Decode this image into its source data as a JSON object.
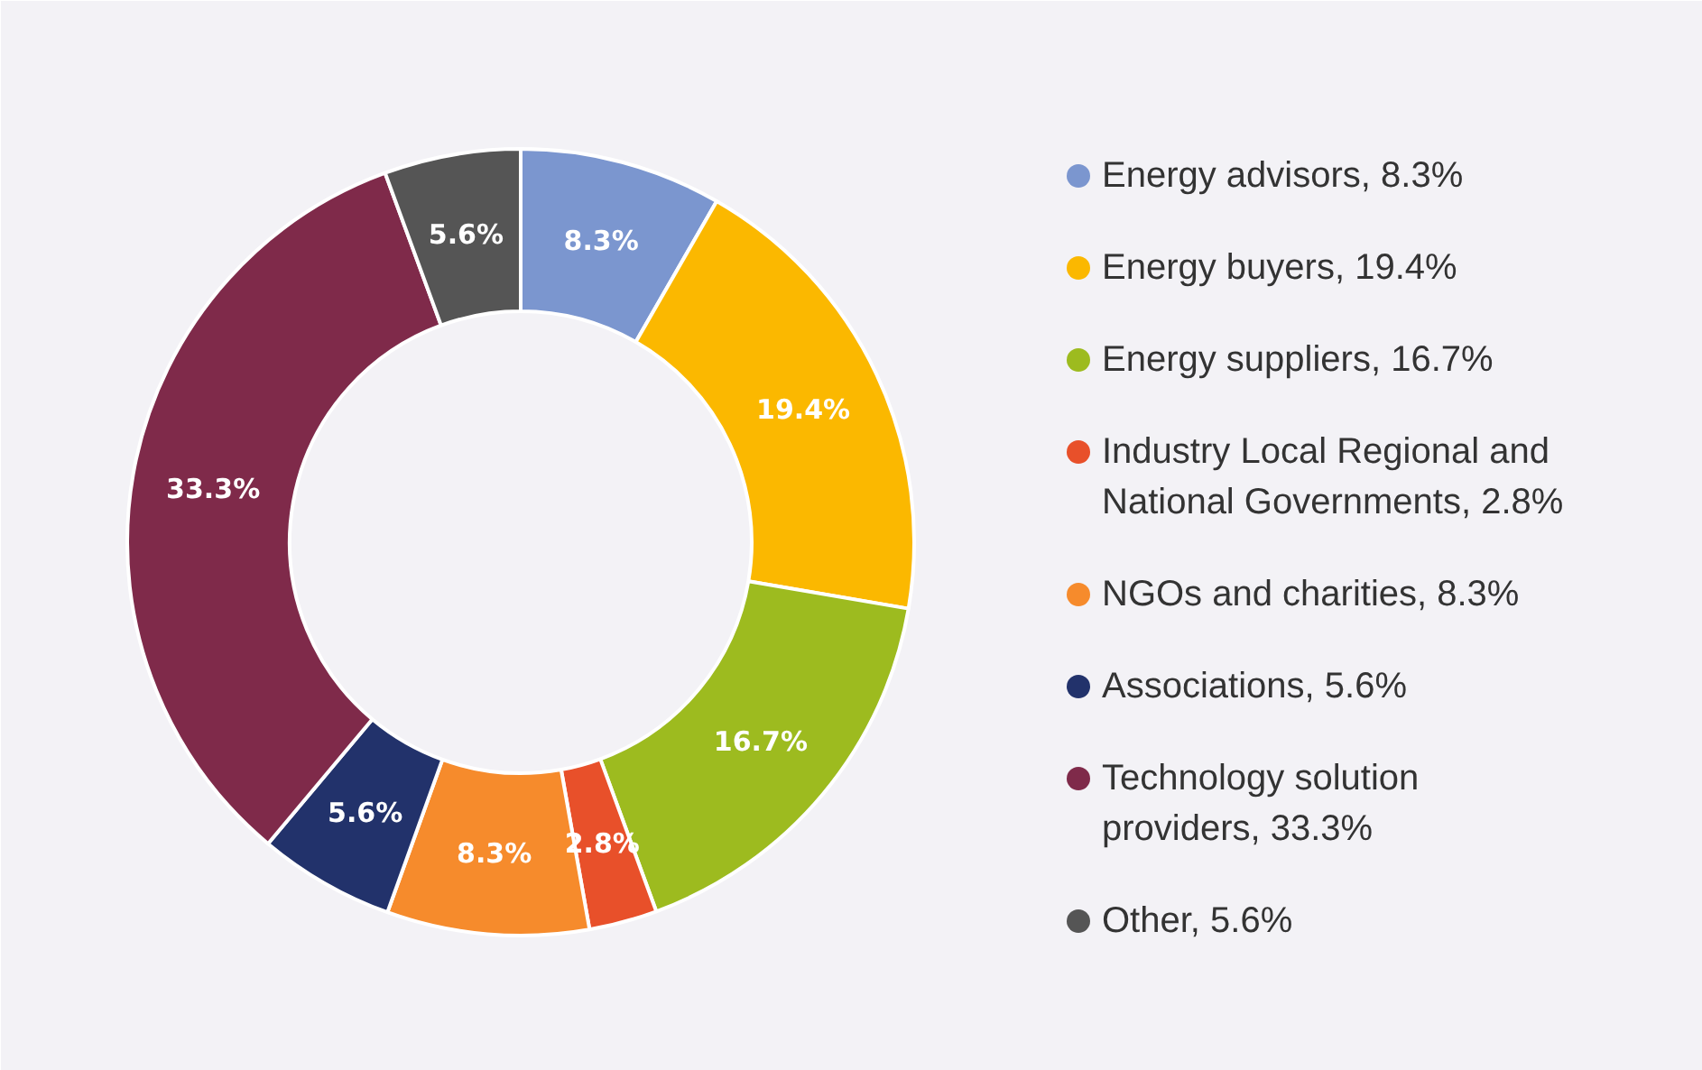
{
  "chart_data": {
    "type": "donut",
    "categories": [
      "Energy advisors",
      "Energy buyers",
      "Energy suppliers",
      "Industry Local Regional and National Governments",
      "NGOs and charities",
      "Associations",
      "Technology solution providers",
      "Other"
    ],
    "values": [
      8.3,
      19.4,
      16.7,
      2.8,
      8.3,
      5.6,
      33.3,
      5.6
    ],
    "value_labels": [
      "8.3%",
      "19.4%",
      "16.7%",
      "2.8%",
      "8.3%",
      "5.6%",
      "33.3%",
      "5.6%"
    ],
    "colors": [
      "#7b96cf",
      "#fbb800",
      "#9dbb1f",
      "#e8502a",
      "#f68b2c",
      "#22326b",
      "#7f2a4a",
      "#555555"
    ],
    "legend": "right"
  }
}
